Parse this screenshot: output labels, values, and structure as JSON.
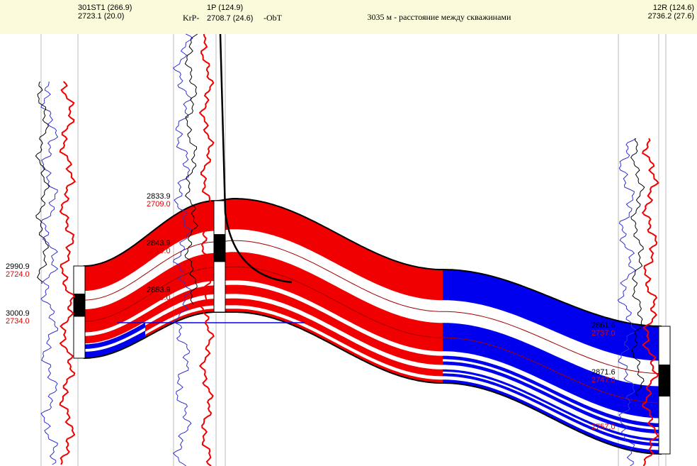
{
  "header": {
    "well_1": {
      "name": "301ST1 (266.9)",
      "depth": "2723.1 (20.0)"
    },
    "well_2": {
      "name": "1P (124.9)",
      "left_tag": "KrP-",
      "depth": "2708.7 (24.6)",
      "right_tag": "-ObT"
    },
    "distance": "3035 м - расстояние между скважинами",
    "well_3": {
      "name": "12R (124.6)",
      "depth": "2736.2 (27.6)"
    }
  },
  "depth_labels": {
    "well_1": [
      {
        "md": "2990.9",
        "tvd": "2724.0"
      },
      {
        "md": "3000.9",
        "tvd": "2734.0"
      }
    ],
    "well_2": [
      {
        "md": "2833.9",
        "tvd": "2709.0"
      },
      {
        "md": "2843.9",
        "tvd": "2719.0"
      },
      {
        "md": "2853.9",
        "tvd": "2729.0"
      }
    ],
    "well_3": [
      {
        "md": "2861.6",
        "tvd": "2737.0"
      },
      {
        "md": "2871.6",
        "tvd": "2747.0"
      },
      {
        "tvd": "2757.0"
      }
    ]
  }
}
